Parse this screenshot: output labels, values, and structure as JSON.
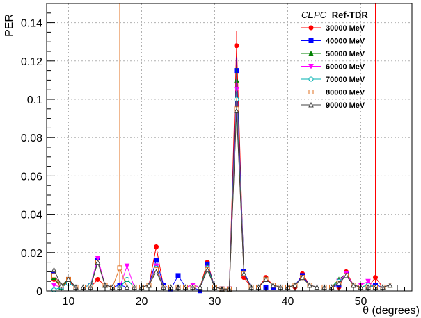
{
  "chart_data": {
    "type": "line",
    "ylabel": "PER",
    "xlabel": "θ (degrees)",
    "xlim": [
      7,
      57
    ],
    "ylim": [
      0,
      0.15
    ],
    "x_ticks": [
      10,
      20,
      30,
      40,
      50
    ],
    "y_ticks": [
      0,
      0.02,
      0.04,
      0.06,
      0.08,
      0.1,
      0.12,
      0.14
    ],
    "y_tick_labels": [
      "0",
      "0.02",
      "0.04",
      "0.06",
      "0.08",
      "0.1",
      "0.12",
      "0.14"
    ],
    "grid": true,
    "legend_title_italic": "CEPC",
    "legend_title_bold": "Ref-TDR",
    "legend_placement": "top-right",
    "x": [
      8,
      9,
      10,
      11,
      12,
      13,
      14,
      15,
      16,
      17,
      18,
      19,
      20,
      21,
      22,
      23,
      24,
      25,
      26,
      27,
      28,
      29,
      30,
      31,
      32,
      33,
      34,
      35,
      36,
      37,
      38,
      39,
      40,
      41,
      42,
      43,
      44,
      45,
      46,
      47,
      48,
      49,
      50,
      51,
      52,
      53,
      54
    ],
    "series": [
      {
        "name": "30000 MeV",
        "color": "#ff0000",
        "marker": "circle-filled",
        "values": [
          0.006,
          0.002,
          0.005,
          0.002,
          0.002,
          0.002,
          0.006,
          0.003,
          0.002,
          0.002,
          0.002,
          0.002,
          0.002,
          0.003,
          0.023,
          0.002,
          0.002,
          0.002,
          0.002,
          0.002,
          0.002,
          0.015,
          0.002,
          0.001,
          0.001,
          0.128,
          0.007,
          0.002,
          0.002,
          0.007,
          0.003,
          0.002,
          0.002,
          0.002,
          0.009,
          0.003,
          0.002,
          0.002,
          0.002,
          0.002,
          0.01,
          0.003,
          0.002,
          0.002,
          0.007,
          0.002,
          0.003
        ]
      },
      {
        "name": "40000 MeV",
        "color": "#0000ff",
        "marker": "square-filled",
        "values": [
          0.009,
          0.002,
          0.006,
          0.002,
          0.002,
          0.002,
          0.016,
          0.003,
          0.002,
          0.003,
          0.002,
          0.002,
          0.002,
          0.003,
          0.016,
          0.003,
          0.001,
          0.008,
          0.002,
          0.002,
          0.0001,
          0.014,
          0.002,
          0.001,
          0.001,
          0.115,
          0.01,
          0.002,
          0.002,
          0.002,
          0.002,
          0.002,
          0.002,
          0.003,
          0.008,
          0.003,
          0.002,
          0.002,
          0.002,
          0.003,
          0.009,
          0.003,
          0.002,
          0.002,
          0.003,
          0.002,
          0.003
        ]
      },
      {
        "name": "50000 MeV",
        "color": "#008000",
        "marker": "triangle-filled",
        "values": [
          0.007,
          0.002,
          0.006,
          0.002,
          0.002,
          0.002,
          0.015,
          0.003,
          0.002,
          0.002,
          0.006,
          0.002,
          0.002,
          0.003,
          0.013,
          0.002,
          0.002,
          0.002,
          0.002,
          0.003,
          0.002,
          0.013,
          0.002,
          0.001,
          0.001,
          0.11,
          0.009,
          0.002,
          0.002,
          0.006,
          0.003,
          0.002,
          0.002,
          0.003,
          0.007,
          0.003,
          0.002,
          0.002,
          0.002,
          0.006,
          0.009,
          0.003,
          0.002,
          0.003,
          0.002,
          0.002,
          0.003
        ]
      },
      {
        "name": "60000 MeV",
        "color": "#ff00ff",
        "marker": "triangle-down-filled",
        "values": [
          0.003,
          0.002,
          0.004,
          0.002,
          0.002,
          0.003,
          0.017,
          0.003,
          0.002,
          0.002,
          0.013,
          0.002,
          0.002,
          0.003,
          0.013,
          0.002,
          0.002,
          0.002,
          0.002,
          0.003,
          0.002,
          0.012,
          0.002,
          0.001,
          0.001,
          0.105,
          0.009,
          0.002,
          0.002,
          0.006,
          0.003,
          0.002,
          0.002,
          0.003,
          0.007,
          0.003,
          0.002,
          0.002,
          0.002,
          0.005,
          0.009,
          0.003,
          0.003,
          0.005,
          0.002,
          0.002,
          0.003
        ]
      },
      {
        "name": "70000 MeV",
        "color": "#00b0b0",
        "marker": "circle-open",
        "values": [
          0.0005,
          0.002,
          0.004,
          0.002,
          0.002,
          0.003,
          0.015,
          0.003,
          0.002,
          0.002,
          0.006,
          0.002,
          0.002,
          0.003,
          0.012,
          0.002,
          0.002,
          0.002,
          0.002,
          0.002,
          0.002,
          0.012,
          0.002,
          0.001,
          0.001,
          0.1,
          0.009,
          0.002,
          0.002,
          0.006,
          0.003,
          0.002,
          0.002,
          0.003,
          0.007,
          0.003,
          0.002,
          0.002,
          0.002,
          0.005,
          0.008,
          0.003,
          0.002,
          0.003,
          0.002,
          0.002,
          0.003
        ]
      },
      {
        "name": "80000 MeV",
        "color": "#e07020",
        "marker": "square-open",
        "values": [
          0.008,
          0.003,
          0.006,
          0.002,
          0.002,
          0.002,
          0.015,
          0.003,
          0.002,
          0.012,
          0.002,
          0.002,
          0.002,
          0.003,
          0.011,
          0.002,
          0.002,
          0.002,
          0.002,
          0.002,
          0.002,
          0.011,
          0.002,
          0.001,
          0.001,
          0.095,
          0.009,
          0.002,
          0.002,
          0.006,
          0.003,
          0.002,
          0.002,
          0.003,
          0.007,
          0.003,
          0.002,
          0.002,
          0.002,
          0.004,
          0.008,
          0.003,
          0.002,
          0.002,
          0.002,
          0.002,
          0.003
        ]
      },
      {
        "name": "90000 MeV",
        "color": "#404040",
        "marker": "triangle-open",
        "values": [
          0.011,
          0.003,
          0.006,
          0.002,
          0.002,
          0.002,
          0.015,
          0.003,
          0.002,
          0.002,
          0.002,
          0.002,
          0.002,
          0.003,
          0.01,
          0.002,
          0.002,
          0.002,
          0.002,
          0.002,
          0.002,
          0.011,
          0.002,
          0.001,
          0.001,
          0.094,
          0.009,
          0.002,
          0.002,
          0.006,
          0.003,
          0.002,
          0.002,
          0.003,
          0.007,
          0.003,
          0.002,
          0.002,
          0.002,
          0.004,
          0.008,
          0.003,
          0.002,
          0.002,
          0.002,
          0.002,
          0.003
        ]
      }
    ],
    "spikes": [
      {
        "x": 17,
        "color": "#e07020",
        "y_top": 0.15
      },
      {
        "x": 18,
        "color": "#ff00ff",
        "y_top": 0.15
      },
      {
        "x": 52,
        "color": "#ff0000",
        "y_top": 0.15
      }
    ]
  }
}
